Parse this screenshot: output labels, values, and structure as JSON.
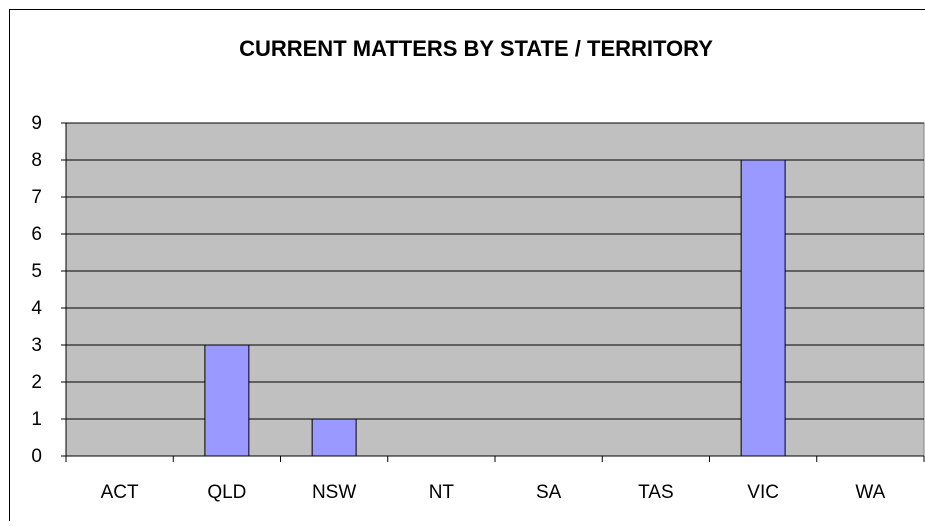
{
  "chart_data": {
    "type": "bar",
    "title": "CURRENT MATTERS BY STATE / TERRITORY",
    "categories": [
      "ACT",
      "QLD",
      "NSW",
      "NT",
      "SA",
      "TAS",
      "VIC",
      "WA"
    ],
    "values": [
      0,
      3,
      1,
      0,
      0,
      0,
      8,
      0
    ],
    "color": "#9999ff",
    "ylim": [
      0,
      9
    ],
    "yticks": [
      0,
      1,
      2,
      3,
      4,
      5,
      6,
      7,
      8,
      9
    ],
    "grid": true
  }
}
